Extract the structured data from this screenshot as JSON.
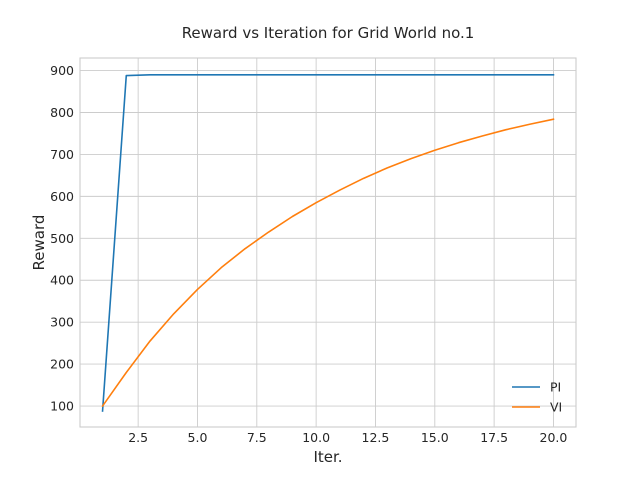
{
  "chart_data": {
    "type": "line",
    "title": "Reward vs Iteration for Grid World no.1",
    "xlabel": "Iter.",
    "ylabel": "Reward",
    "xlim": [
      0.05,
      20.95
    ],
    "ylim": [
      50,
      930
    ],
    "xticks": [
      2.5,
      5.0,
      7.5,
      10.0,
      12.5,
      15.0,
      17.5,
      20.0
    ],
    "yticks": [
      100,
      200,
      300,
      400,
      500,
      600,
      700,
      800,
      900
    ],
    "grid": true,
    "legend_position": "bottom-right",
    "x": [
      1,
      2,
      3,
      4,
      5,
      6,
      7,
      8,
      9,
      10,
      11,
      12,
      13,
      14,
      15,
      16,
      17,
      18,
      19,
      20
    ],
    "series": [
      {
        "name": "PI",
        "color": "#1f77b4",
        "values": [
          88,
          888,
          890,
          890,
          890,
          890,
          890,
          890,
          890,
          890,
          890,
          890,
          890,
          890,
          890,
          890,
          890,
          890,
          890,
          890
        ]
      },
      {
        "name": "VI",
        "color": "#ff7f0e",
        "values": [
          100,
          180,
          255,
          320,
          378,
          430,
          475,
          515,
          552,
          585,
          615,
          643,
          668,
          690,
          710,
          728,
          744,
          759,
          772,
          784
        ]
      }
    ]
  }
}
